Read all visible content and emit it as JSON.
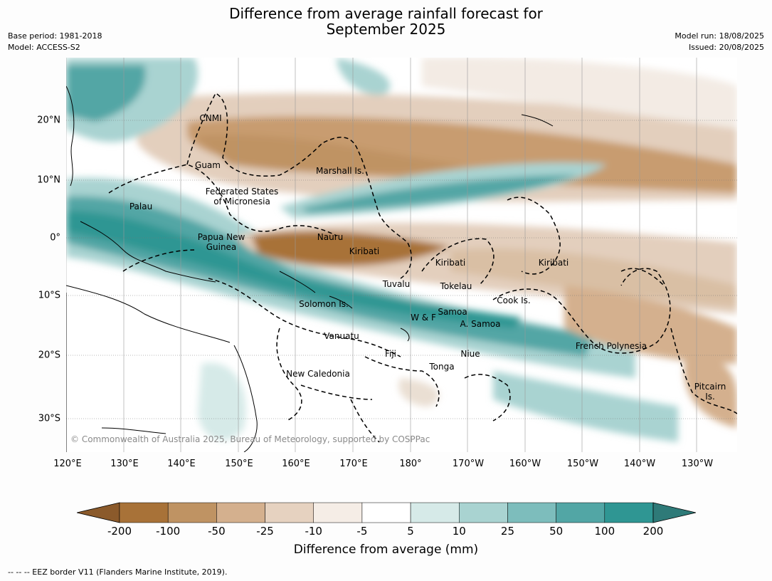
{
  "title_line1": "Difference from average rainfall forecast for",
  "title_line2": "September 2025",
  "meta": {
    "base_period": "Base period: 1981-2018",
    "model": "Model: ACCESS-S2",
    "model_run": "Model run: 18/08/2025",
    "issued": "Issued: 20/08/2025"
  },
  "map": {
    "lon_labels": [
      "120°E",
      "130°E",
      "140°E",
      "150°E",
      "160°E",
      "170°E",
      "180°",
      "170°W",
      "160°W",
      "150°W",
      "140°W",
      "130°W"
    ],
    "lat_labels": [
      "20°N",
      "10°N",
      "0°",
      "10°S",
      "20°S",
      "30°S"
    ],
    "regions": [
      "CNMI",
      "Guam",
      "Marshall Is.",
      "Federated States\nof Micronesia",
      "Palau",
      "Papua New\nGuinea",
      "Nauru",
      "Kiribati",
      "Kiribati",
      "Kiribati",
      "Tuvalu",
      "Tokelau",
      "Cook Is.",
      "Solomon Is.",
      "Samoa",
      "W & F",
      "A. Samoa",
      "Vanuatu",
      "Fiji",
      "Niue",
      "Tonga",
      "French Polynesia",
      "New Caledonia",
      "Pitcairn\nIs."
    ],
    "copyright": "© Commonwealth of Australia 2025, Bureau of Meteorology, supported by COSPPac",
    "colors": {
      "dry_strong": "#a87238",
      "dry_mid": "#bf9363",
      "dry_light": "#e3cfbd",
      "wet_light": "#a9d3d1",
      "wet_mid": "#52a6a5",
      "wet_strong": "#2f9693"
    }
  },
  "colorbar": {
    "ticks": [
      "-200",
      "-100",
      "-50",
      "-25",
      "-10",
      "-5",
      "5",
      "10",
      "25",
      "50",
      "100",
      "200"
    ],
    "colors": [
      "#8b5a2b",
      "#a87238",
      "#bf9363",
      "#d4b08e",
      "#e6d2c0",
      "#f5ede6",
      "#ffffff",
      "#d6eae8",
      "#a9d3d1",
      "#7dbdbc",
      "#52a6a5",
      "#2f9693",
      "#2e7a78"
    ],
    "label": "Difference from average (mm)"
  },
  "footnote": "--  --  -- EEZ border V11 (Flanders Marine Institute, 2019)."
}
